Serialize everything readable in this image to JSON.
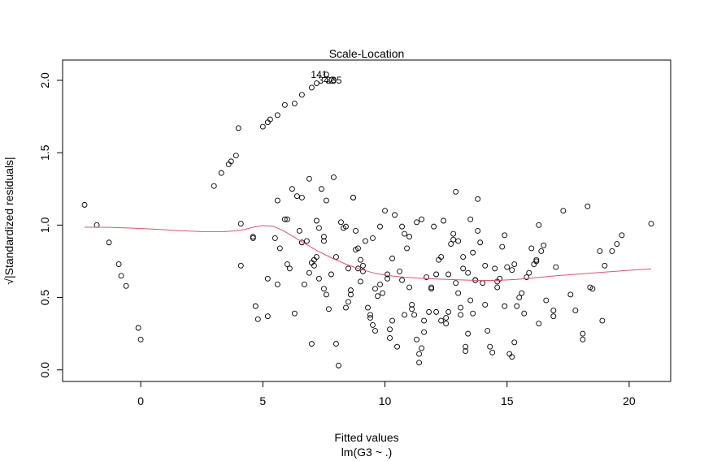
{
  "chart_data": {
    "type": "scatter",
    "title": "Scale-Location",
    "xlabel": "Fitted values",
    "subtitle": "lm(G3 ~ .)",
    "ylabel": "√|Standardized residuals|",
    "xlim": [
      -3.2,
      21.7
    ],
    "ylim": [
      -0.08,
      2.14
    ],
    "x_ticks": [
      0,
      5,
      10,
      15,
      20
    ],
    "y_ticks": [
      0.0,
      0.5,
      1.0,
      1.5,
      2.0
    ],
    "x_tick_labels": [
      "0",
      "5",
      "10",
      "15",
      "20"
    ],
    "y_tick_labels": [
      "0.0",
      "0.5",
      "1.0",
      "1.5",
      "2.0"
    ],
    "grid": false,
    "point_style": "open-circle",
    "point_color": "#000000",
    "smooth_color": "#DF536B",
    "annotations": [
      {
        "text": "141",
        "x": 7.3,
        "y": 2.04
      },
      {
        "text": "342",
        "x": 7.6,
        "y": 2.0
      },
      {
        "text": "335",
        "x": 7.9,
        "y": 2.0
      }
    ],
    "points": [
      [
        -2.3,
        1.14
      ],
      [
        -1.8,
        1.0
      ],
      [
        -1.3,
        0.88
      ],
      [
        -0.9,
        0.73
      ],
      [
        -0.8,
        0.65
      ],
      [
        -0.6,
        0.58
      ],
      [
        -0.1,
        0.29
      ],
      [
        0.0,
        0.21
      ],
      [
        3.0,
        1.27
      ],
      [
        3.3,
        1.36
      ],
      [
        3.6,
        1.42
      ],
      [
        3.7,
        1.44
      ],
      [
        3.9,
        1.48
      ],
      [
        4.0,
        1.67
      ],
      [
        4.1,
        1.01
      ],
      [
        4.1,
        0.72
      ],
      [
        4.6,
        0.92
      ],
      [
        4.6,
        0.91
      ],
      [
        4.7,
        0.44
      ],
      [
        4.8,
        0.35
      ],
      [
        5.0,
        1.68
      ],
      [
        5.2,
        1.71
      ],
      [
        5.3,
        1.73
      ],
      [
        5.6,
        1.76
      ],
      [
        5.9,
        1.83
      ],
      [
        6.3,
        1.84
      ],
      [
        6.6,
        1.9
      ],
      [
        7.0,
        1.95
      ],
      [
        7.2,
        1.98
      ],
      [
        5.2,
        0.63
      ],
      [
        5.2,
        0.37
      ],
      [
        5.5,
        0.91
      ],
      [
        5.6,
        0.59
      ],
      [
        5.6,
        1.17
      ],
      [
        5.7,
        0.84
      ],
      [
        5.9,
        1.04
      ],
      [
        6.0,
        1.04
      ],
      [
        6.0,
        0.73
      ],
      [
        6.1,
        0.7
      ],
      [
        6.2,
        1.25
      ],
      [
        6.3,
        0.39
      ],
      [
        6.4,
        1.2
      ],
      [
        6.5,
        0.96
      ],
      [
        6.6,
        1.19
      ],
      [
        6.6,
        0.88
      ],
      [
        6.7,
        0.59
      ],
      [
        6.8,
        0.89
      ],
      [
        6.9,
        0.67
      ],
      [
        6.9,
        1.32
      ],
      [
        7.0,
        0.18
      ],
      [
        7.0,
        0.74
      ],
      [
        7.1,
        0.76
      ],
      [
        7.1,
        0.72
      ],
      [
        7.2,
        0.78
      ],
      [
        7.2,
        1.03
      ],
      [
        7.3,
        0.98
      ],
      [
        7.3,
        0.63
      ],
      [
        7.4,
        1.25
      ],
      [
        7.5,
        0.56
      ],
      [
        7.5,
        0.89
      ],
      [
        7.5,
        0.92
      ],
      [
        7.6,
        1.17
      ],
      [
        7.6,
        0.52
      ],
      [
        7.7,
        0.42
      ],
      [
        7.8,
        0.66
      ],
      [
        7.9,
        1.33
      ],
      [
        8.0,
        0.78
      ],
      [
        8.0,
        0.18
      ],
      [
        8.1,
        0.03
      ],
      [
        8.2,
        1.02
      ],
      [
        8.3,
        0.98
      ],
      [
        8.4,
        0.99
      ],
      [
        8.4,
        0.43
      ],
      [
        8.5,
        0.7
      ],
      [
        8.5,
        0.47
      ],
      [
        8.6,
        0.55
      ],
      [
        8.6,
        0.52
      ],
      [
        8.7,
        1.19
      ],
      [
        8.7,
        1.19
      ],
      [
        8.8,
        0.83
      ],
      [
        8.8,
        0.96
      ],
      [
        8.9,
        0.7
      ],
      [
        8.9,
        0.84
      ],
      [
        9.0,
        0.76
      ],
      [
        9.0,
        0.61
      ],
      [
        9.1,
        0.72
      ],
      [
        9.1,
        0.68
      ],
      [
        9.2,
        0.89
      ],
      [
        9.3,
        0.43
      ],
      [
        9.4,
        0.38
      ],
      [
        9.4,
        0.36
      ],
      [
        9.5,
        0.91
      ],
      [
        9.5,
        0.31
      ],
      [
        9.6,
        0.27
      ],
      [
        9.6,
        0.56
      ],
      [
        9.7,
        0.51
      ],
      [
        9.8,
        0.59
      ],
      [
        9.8,
        0.99
      ],
      [
        9.9,
        0.53
      ],
      [
        10.0,
        1.1
      ],
      [
        10.1,
        0.63
      ],
      [
        10.1,
        0.66
      ],
      [
        10.2,
        0.28
      ],
      [
        10.2,
        0.22
      ],
      [
        10.3,
        0.34
      ],
      [
        10.3,
        0.77
      ],
      [
        10.4,
        1.07
      ],
      [
        10.5,
        0.16
      ],
      [
        10.6,
        0.68
      ],
      [
        10.7,
        0.99
      ],
      [
        10.7,
        0.62
      ],
      [
        10.8,
        0.38
      ],
      [
        10.8,
        0.94
      ],
      [
        10.9,
        0.84
      ],
      [
        11.0,
        0.92
      ],
      [
        11.0,
        0.57
      ],
      [
        11.1,
        0.45
      ],
      [
        11.1,
        0.42
      ],
      [
        11.2,
        0.38
      ],
      [
        11.3,
        0.21
      ],
      [
        11.3,
        1.02
      ],
      [
        11.4,
        0.11
      ],
      [
        11.4,
        0.05
      ],
      [
        11.5,
        1.04
      ],
      [
        11.5,
        0.15
      ],
      [
        11.6,
        0.26
      ],
      [
        11.6,
        0.34
      ],
      [
        11.7,
        0.64
      ],
      [
        11.8,
        0.4
      ],
      [
        11.9,
        0.57
      ],
      [
        11.9,
        0.56
      ],
      [
        12.0,
        0.99
      ],
      [
        12.1,
        0.4
      ],
      [
        12.1,
        0.66
      ],
      [
        12.2,
        0.76
      ],
      [
        12.3,
        0.78
      ],
      [
        12.3,
        0.34
      ],
      [
        12.4,
        1.03
      ],
      [
        12.5,
        0.32
      ],
      [
        12.5,
        0.36
      ],
      [
        12.6,
        0.4
      ],
      [
        12.6,
        0.66
      ],
      [
        12.7,
        0.87
      ],
      [
        12.8,
        0.94
      ],
      [
        12.8,
        0.9
      ],
      [
        12.9,
        1.23
      ],
      [
        12.9,
        0.6
      ],
      [
        13.0,
        0.53
      ],
      [
        13.0,
        0.89
      ],
      [
        13.1,
        0.43
      ],
      [
        13.1,
        0.38
      ],
      [
        13.2,
        0.78
      ],
      [
        13.2,
        0.7
      ],
      [
        13.3,
        0.13
      ],
      [
        13.3,
        0.16
      ],
      [
        13.4,
        0.67
      ],
      [
        13.4,
        0.25
      ],
      [
        13.5,
        1.04
      ],
      [
        13.5,
        0.48
      ],
      [
        13.6,
        0.39
      ],
      [
        13.6,
        0.81
      ],
      [
        13.7,
        0.62
      ],
      [
        13.7,
        0.62
      ],
      [
        13.8,
        0.96
      ],
      [
        13.8,
        1.18
      ],
      [
        13.9,
        0.88
      ],
      [
        14.0,
        0.6
      ],
      [
        14.1,
        0.45
      ],
      [
        14.1,
        0.72
      ],
      [
        14.2,
        0.27
      ],
      [
        14.3,
        0.16
      ],
      [
        14.4,
        0.12
      ],
      [
        14.5,
        0.7
      ],
      [
        14.6,
        0.61
      ],
      [
        14.6,
        0.57
      ],
      [
        14.7,
        0.63
      ],
      [
        14.8,
        0.85
      ],
      [
        14.9,
        0.93
      ],
      [
        14.9,
        0.44
      ],
      [
        15.0,
        0.71
      ],
      [
        15.1,
        0.11
      ],
      [
        15.2,
        0.09
      ],
      [
        15.2,
        0.69
      ],
      [
        15.3,
        0.73
      ],
      [
        15.3,
        0.19
      ],
      [
        15.4,
        0.44
      ],
      [
        15.5,
        0.5
      ],
      [
        15.6,
        0.53
      ],
      [
        15.7,
        0.39
      ],
      [
        15.8,
        0.64
      ],
      [
        15.9,
        0.67
      ],
      [
        16.0,
        0.84
      ],
      [
        16.1,
        0.73
      ],
      [
        16.2,
        0.75
      ],
      [
        16.2,
        0.76
      ],
      [
        16.3,
        1.0
      ],
      [
        16.3,
        0.32
      ],
      [
        16.4,
        0.82
      ],
      [
        16.5,
        0.86
      ],
      [
        16.6,
        0.48
      ],
      [
        16.9,
        0.41
      ],
      [
        16.9,
        0.37
      ],
      [
        17.0,
        0.71
      ],
      [
        17.3,
        1.1
      ],
      [
        17.6,
        0.52
      ],
      [
        17.8,
        0.41
      ],
      [
        18.1,
        0.25
      ],
      [
        18.1,
        0.21
      ],
      [
        18.3,
        1.13
      ],
      [
        18.4,
        0.57
      ],
      [
        18.5,
        0.56
      ],
      [
        18.8,
        0.82
      ],
      [
        18.9,
        0.34
      ],
      [
        19.0,
        0.72
      ],
      [
        19.3,
        0.82
      ],
      [
        19.5,
        0.87
      ],
      [
        19.7,
        0.93
      ],
      [
        20.9,
        1.01
      ],
      [
        7.6,
        2.04
      ],
      [
        7.9,
        2.0
      ]
    ],
    "smooth": [
      [
        -2.3,
        0.985
      ],
      [
        -1.5,
        0.985
      ],
      [
        -0.5,
        0.98
      ],
      [
        0.5,
        0.972
      ],
      [
        1.5,
        0.963
      ],
      [
        2.5,
        0.955
      ],
      [
        3.5,
        0.955
      ],
      [
        4.2,
        0.968
      ],
      [
        4.6,
        0.985
      ],
      [
        5.0,
        0.997
      ],
      [
        5.4,
        0.993
      ],
      [
        5.8,
        0.965
      ],
      [
        6.2,
        0.925
      ],
      [
        6.7,
        0.875
      ],
      [
        7.2,
        0.825
      ],
      [
        7.8,
        0.775
      ],
      [
        8.4,
        0.73
      ],
      [
        9.0,
        0.695
      ],
      [
        9.6,
        0.667
      ],
      [
        10.2,
        0.65
      ],
      [
        10.8,
        0.64
      ],
      [
        11.5,
        0.632
      ],
      [
        12.2,
        0.627
      ],
      [
        13.0,
        0.622
      ],
      [
        13.8,
        0.618
      ],
      [
        14.6,
        0.618
      ],
      [
        15.4,
        0.625
      ],
      [
        16.2,
        0.637
      ],
      [
        17.0,
        0.65
      ],
      [
        18.0,
        0.663
      ],
      [
        19.0,
        0.675
      ],
      [
        20.0,
        0.688
      ],
      [
        20.9,
        0.697
      ]
    ]
  }
}
